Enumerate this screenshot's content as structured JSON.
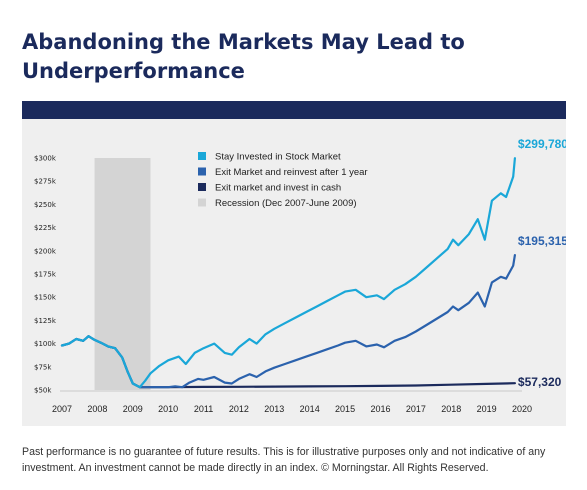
{
  "header": {
    "title": "Abandoning the Markets May Lead to Underperformance"
  },
  "footnote": "Past performance is no guarantee of future results. This is for illustrative purposes only and not indicative of any investment. An investment cannot be made directly in an index. © Morningstar. All Rights Reserved.",
  "colors": {
    "brand_navy": "#1b2a5c",
    "panel_bg": "#efefef",
    "recession": "#d4d4d4"
  },
  "chart_data": {
    "type": "line",
    "title": "",
    "xlabel": "",
    "ylabel": "",
    "xlim": [
      2007,
      2020
    ],
    "ylim": [
      50000,
      300000
    ],
    "y_ticks": [
      {
        "value": 50000,
        "label": "$50k"
      },
      {
        "value": 75000,
        "label": "$75k"
      },
      {
        "value": 100000,
        "label": "$100k"
      },
      {
        "value": 125000,
        "label": "$125k"
      },
      {
        "value": 150000,
        "label": "$150k"
      },
      {
        "value": 175000,
        "label": "$175k"
      },
      {
        "value": 200000,
        "label": "$200k"
      },
      {
        "value": 225000,
        "label": "$225k"
      },
      {
        "value": 250000,
        "label": "$250k"
      },
      {
        "value": 275000,
        "label": "$275k"
      },
      {
        "value": 300000,
        "label": "$300k"
      }
    ],
    "x_ticks": [
      "2007",
      "2008",
      "2009",
      "2010",
      "2011",
      "2012",
      "2013",
      "2014",
      "2015",
      "2016",
      "2017",
      "2018",
      "2019",
      "2020"
    ],
    "recession": {
      "label": "Recession (Dec 2007-June 2009)",
      "start": 2007.92,
      "end": 2009.5,
      "color": "#d4d4d4"
    },
    "legend_position": "top-center",
    "series": [
      {
        "name": "Stay Invested in Stock Market",
        "color": "#1aa7d8",
        "end_label": "$299,780",
        "points": [
          [
            2007.0,
            98000
          ],
          [
            2007.2,
            100000
          ],
          [
            2007.4,
            105000
          ],
          [
            2007.6,
            103000
          ],
          [
            2007.75,
            108000
          ],
          [
            2007.92,
            104000
          ],
          [
            2008.1,
            101000
          ],
          [
            2008.3,
            97000
          ],
          [
            2008.5,
            95000
          ],
          [
            2008.7,
            85000
          ],
          [
            2008.85,
            70000
          ],
          [
            2009.0,
            57000
          ],
          [
            2009.2,
            53000
          ],
          [
            2009.35,
            60000
          ],
          [
            2009.5,
            68000
          ],
          [
            2009.75,
            76000
          ],
          [
            2010.0,
            82000
          ],
          [
            2010.3,
            86000
          ],
          [
            2010.5,
            78000
          ],
          [
            2010.75,
            90000
          ],
          [
            2011.0,
            95000
          ],
          [
            2011.3,
            100000
          ],
          [
            2011.6,
            90000
          ],
          [
            2011.8,
            88000
          ],
          [
            2012.0,
            96000
          ],
          [
            2012.3,
            105000
          ],
          [
            2012.5,
            100000
          ],
          [
            2012.75,
            110000
          ],
          [
            2013.0,
            116000
          ],
          [
            2013.3,
            122000
          ],
          [
            2013.6,
            128000
          ],
          [
            2013.9,
            134000
          ],
          [
            2014.2,
            140000
          ],
          [
            2014.5,
            146000
          ],
          [
            2014.8,
            152000
          ],
          [
            2015.0,
            156000
          ],
          [
            2015.3,
            158000
          ],
          [
            2015.6,
            150000
          ],
          [
            2015.9,
            152000
          ],
          [
            2016.1,
            148000
          ],
          [
            2016.4,
            158000
          ],
          [
            2016.7,
            164000
          ],
          [
            2017.0,
            172000
          ],
          [
            2017.3,
            182000
          ],
          [
            2017.6,
            192000
          ],
          [
            2017.9,
            202000
          ],
          [
            2018.05,
            212000
          ],
          [
            2018.2,
            206000
          ],
          [
            2018.5,
            218000
          ],
          [
            2018.75,
            234000
          ],
          [
            2018.95,
            212000
          ],
          [
            2019.15,
            254000
          ],
          [
            2019.4,
            262000
          ],
          [
            2019.55,
            258000
          ],
          [
            2019.75,
            280000
          ],
          [
            2019.8,
            299780
          ]
        ]
      },
      {
        "name": "Exit Market and reinvest after 1 year",
        "color": "#2b62ad",
        "end_label": "$195,315",
        "points": [
          [
            2007.0,
            98000
          ],
          [
            2007.2,
            100000
          ],
          [
            2007.4,
            105000
          ],
          [
            2007.6,
            103000
          ],
          [
            2007.75,
            108000
          ],
          [
            2007.92,
            104000
          ],
          [
            2008.1,
            101000
          ],
          [
            2008.3,
            97000
          ],
          [
            2008.5,
            95000
          ],
          [
            2008.7,
            85000
          ],
          [
            2008.85,
            70000
          ],
          [
            2009.0,
            57000
          ],
          [
            2009.2,
            53000
          ],
          [
            2009.5,
            53000
          ],
          [
            2009.8,
            53000
          ],
          [
            2010.0,
            53000
          ],
          [
            2010.2,
            54000
          ],
          [
            2010.4,
            53000
          ],
          [
            2010.6,
            58000
          ],
          [
            2010.85,
            62000
          ],
          [
            2011.0,
            61000
          ],
          [
            2011.3,
            64000
          ],
          [
            2011.6,
            58000
          ],
          [
            2011.8,
            57000
          ],
          [
            2012.0,
            62000
          ],
          [
            2012.3,
            67000
          ],
          [
            2012.5,
            64000
          ],
          [
            2012.75,
            70000
          ],
          [
            2013.0,
            74000
          ],
          [
            2013.3,
            78000
          ],
          [
            2013.6,
            82000
          ],
          [
            2013.9,
            86000
          ],
          [
            2014.2,
            90000
          ],
          [
            2014.5,
            94000
          ],
          [
            2014.8,
            98000
          ],
          [
            2015.0,
            101000
          ],
          [
            2015.3,
            103000
          ],
          [
            2015.6,
            97000
          ],
          [
            2015.9,
            99000
          ],
          [
            2016.1,
            96000
          ],
          [
            2016.4,
            103000
          ],
          [
            2016.7,
            107000
          ],
          [
            2017.0,
            113000
          ],
          [
            2017.3,
            120000
          ],
          [
            2017.6,
            127000
          ],
          [
            2017.9,
            134000
          ],
          [
            2018.05,
            140000
          ],
          [
            2018.2,
            136000
          ],
          [
            2018.5,
            144000
          ],
          [
            2018.75,
            155000
          ],
          [
            2018.95,
            140000
          ],
          [
            2019.15,
            166000
          ],
          [
            2019.4,
            172000
          ],
          [
            2019.55,
            170000
          ],
          [
            2019.75,
            184000
          ],
          [
            2019.8,
            195315
          ]
        ]
      },
      {
        "name": "Exit market and invest in cash",
        "color": "#1b2a5c",
        "end_label": "$57,320",
        "points": [
          [
            2007.0,
            98000
          ],
          [
            2007.2,
            100000
          ],
          [
            2007.4,
            105000
          ],
          [
            2007.6,
            103000
          ],
          [
            2007.75,
            108000
          ],
          [
            2007.92,
            104000
          ],
          [
            2008.1,
            101000
          ],
          [
            2008.3,
            97000
          ],
          [
            2008.5,
            95000
          ],
          [
            2008.7,
            85000
          ],
          [
            2008.85,
            70000
          ],
          [
            2009.0,
            57000
          ],
          [
            2009.2,
            53000
          ],
          [
            2010.0,
            53000
          ],
          [
            2011.0,
            53300
          ],
          [
            2012.0,
            53500
          ],
          [
            2013.0,
            53700
          ],
          [
            2014.0,
            53900
          ],
          [
            2015.0,
            54100
          ],
          [
            2016.0,
            54400
          ],
          [
            2017.0,
            54900
          ],
          [
            2018.0,
            55700
          ],
          [
            2019.0,
            56600
          ],
          [
            2019.8,
            57320
          ]
        ]
      }
    ]
  }
}
